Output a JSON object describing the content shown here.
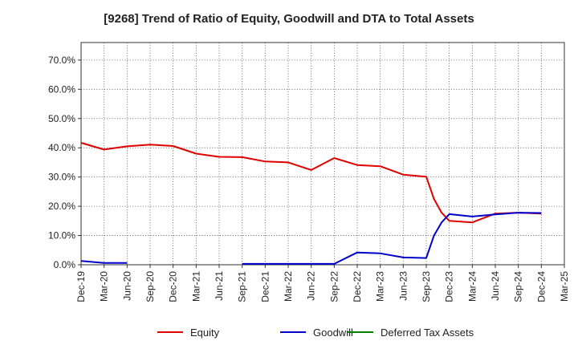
{
  "chart_data": {
    "type": "line",
    "title": "[9268]  Trend of Ratio of Equity, Goodwill and DTA to Total Assets",
    "xlabel": "",
    "ylabel": "",
    "x_tick_labels": [
      "Dec-19",
      "Mar-20",
      "Jun-20",
      "Sep-20",
      "Dec-20",
      "Mar-21",
      "Jun-21",
      "Sep-21",
      "Dec-21",
      "Mar-22",
      "Jun-22",
      "Sep-22",
      "Dec-22",
      "Mar-23",
      "Jun-23",
      "Sep-23",
      "Dec-23",
      "Mar-24",
      "Jun-24",
      "Sep-24",
      "Dec-24",
      "Mar-25"
    ],
    "y_tick_labels": [
      "0.0%",
      "10.0%",
      "20.0%",
      "30.0%",
      "40.0%",
      "50.0%",
      "60.0%",
      "70.0%"
    ],
    "ylim": [
      0,
      76
    ],
    "grid": true,
    "legend_position": "bottom",
    "series": [
      {
        "name": "Equity",
        "color": "#e00000",
        "points": [
          [
            "Dec-19",
            41.7
          ],
          [
            "Mar-20",
            39.4
          ],
          [
            "Jun-20",
            40.5
          ],
          [
            "Sep-20",
            41.1
          ],
          [
            "Dec-20",
            40.6
          ],
          [
            "Mar-21",
            38.0
          ],
          [
            "Jun-21",
            36.9
          ],
          [
            "Sep-21",
            36.8
          ],
          [
            "Dec-21",
            35.3
          ],
          [
            "Mar-22",
            35.0
          ],
          [
            "Jun-22",
            32.4
          ],
          [
            "Sep-22",
            36.5
          ],
          [
            "Dec-22",
            34.1
          ],
          [
            "Mar-23",
            33.7
          ],
          [
            "Jun-23",
            30.8
          ],
          [
            "Sep-23",
            30.1
          ],
          [
            "Oct-23",
            22.5
          ],
          [
            "Nov-23",
            17.8
          ],
          [
            "Dec-23",
            15.0
          ],
          [
            "Mar-24",
            14.5
          ],
          [
            "Jun-24",
            17.5
          ],
          [
            "Sep-24",
            17.8
          ],
          [
            "Dec-24",
            17.5
          ]
        ]
      },
      {
        "name": "Goodwill",
        "color": "#0000cc",
        "segments": [
          [
            [
              "Dec-19",
              1.3
            ],
            [
              "Mar-20",
              0.6
            ],
            [
              "Jun-20",
              0.6
            ]
          ],
          [
            [
              "Sep-21",
              0.3
            ],
            [
              "Dec-21",
              0.3
            ],
            [
              "Mar-22",
              0.3
            ],
            [
              "Jun-22",
              0.3
            ],
            [
              "Sep-22",
              0.3
            ],
            [
              "Dec-22",
              4.2
            ],
            [
              "Mar-23",
              3.9
            ],
            [
              "Jun-23",
              2.5
            ],
            [
              "Sep-23",
              2.3
            ],
            [
              "Oct-23",
              10.0
            ],
            [
              "Nov-23",
              14.5
            ],
            [
              "Dec-23",
              17.3
            ],
            [
              "Mar-24",
              16.5
            ],
            [
              "Jun-24",
              17.2
            ],
            [
              "Sep-24",
              17.8
            ],
            [
              "Dec-24",
              17.7
            ]
          ]
        ]
      },
      {
        "name": "Deferred Tax Assets",
        "color": "#008000",
        "points": []
      }
    ]
  }
}
